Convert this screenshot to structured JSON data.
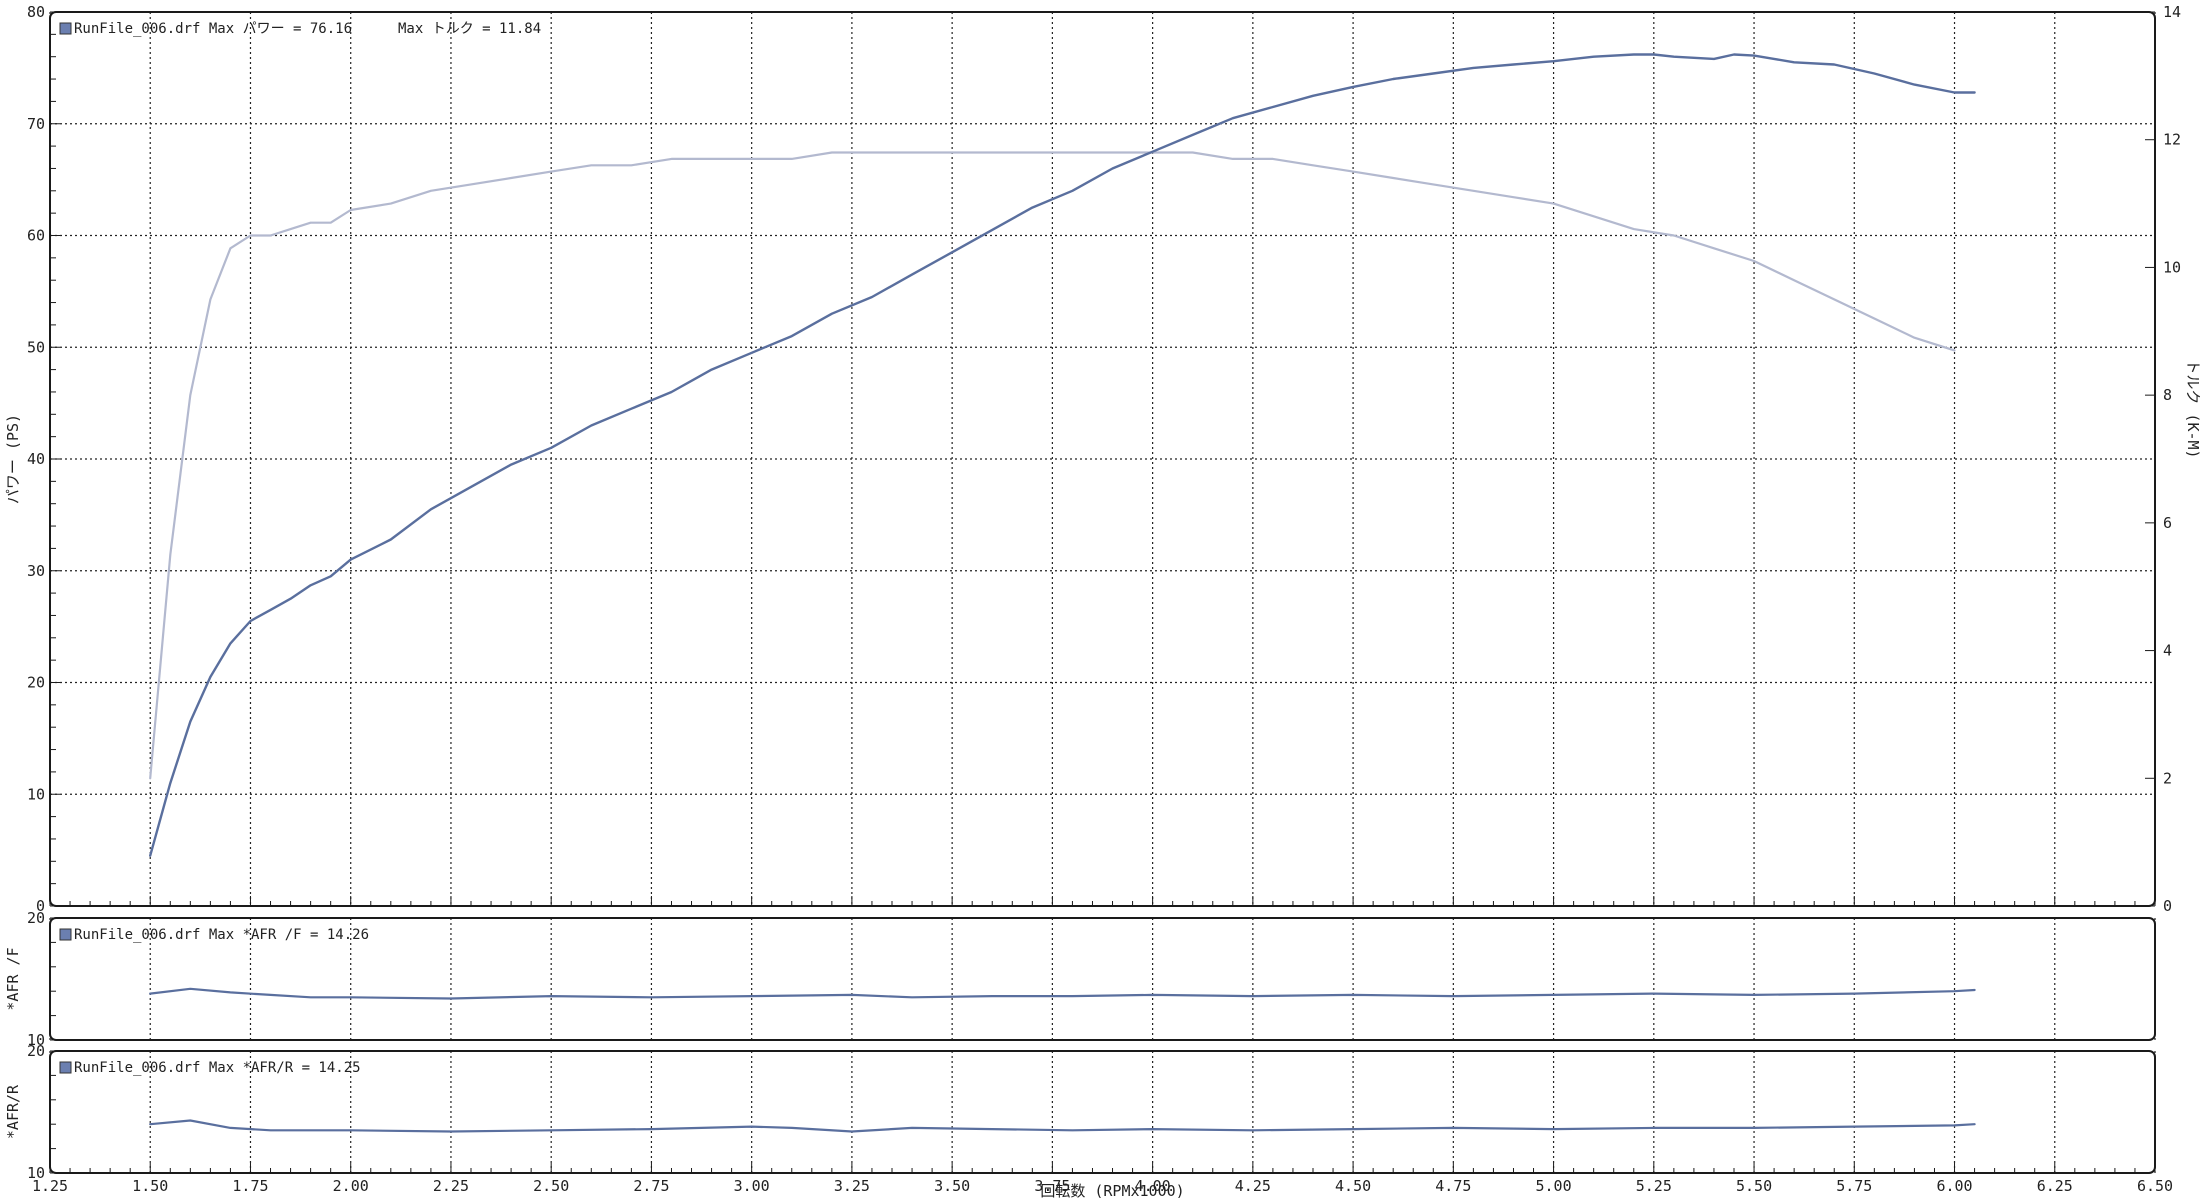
{
  "colors": {
    "power": "#5a6f9e",
    "torque": "#b3b9cf",
    "afr": "#5a6f9e",
    "grid": "#222222",
    "frame": "#1a1a1a",
    "legend_box": "#6b7fb0"
  },
  "chart_data": [
    {
      "type": "line",
      "panel": "main",
      "legend": [
        "RunFile_006.drf Max パワー = 76.16",
        "Max トルク = 11.84"
      ],
      "xlabel": "回転数 (RPMx1000)",
      "ylabel": "パワー (PS)",
      "y2label": "トルク (K-M)",
      "xlim": [
        1.25,
        6.5
      ],
      "ylim": [
        0,
        80
      ],
      "y2lim": [
        0,
        14
      ],
      "x_ticks": [
        "1.25",
        "1.50",
        "1.75",
        "2.00",
        "2.25",
        "2.50",
        "2.75",
        "3.00",
        "3.25",
        "3.50",
        "3.75",
        "4.00",
        "4.25",
        "4.50",
        "4.75",
        "5.00",
        "5.25",
        "5.50",
        "5.75",
        "6.00",
        "6.25",
        "6.50"
      ],
      "y_ticks": [
        "0",
        "10",
        "20",
        "30",
        "40",
        "50",
        "60",
        "70",
        "80"
      ],
      "y2_ticks": [
        "0",
        "2",
        "4",
        "6",
        "8",
        "10",
        "12",
        "14"
      ],
      "grid": true,
      "legend_position": "top-left",
      "series": [
        {
          "name": "パワー",
          "axis": "left",
          "color": "#5a6f9e",
          "x": [
            1.5,
            1.55,
            1.6,
            1.65,
            1.7,
            1.75,
            1.8,
            1.85,
            1.9,
            1.95,
            2.0,
            2.1,
            2.2,
            2.3,
            2.4,
            2.5,
            2.6,
            2.7,
            2.8,
            2.9,
            3.0,
            3.1,
            3.2,
            3.3,
            3.4,
            3.5,
            3.6,
            3.7,
            3.8,
            3.9,
            4.0,
            4.1,
            4.2,
            4.3,
            4.4,
            4.5,
            4.6,
            4.7,
            4.8,
            4.9,
            5.0,
            5.1,
            5.2,
            5.25,
            5.3,
            5.4,
            5.45,
            5.5,
            5.55,
            5.6,
            5.7,
            5.8,
            5.9,
            6.0,
            6.05
          ],
          "y": [
            4.5,
            11,
            16.5,
            20.5,
            23.5,
            25.5,
            26.5,
            27.5,
            28.7,
            29.5,
            31,
            32.8,
            35.5,
            37.5,
            39.5,
            41,
            43,
            44.5,
            46,
            48,
            49.5,
            51,
            53,
            54.5,
            56.5,
            58.5,
            60.5,
            62.5,
            64,
            66,
            67.5,
            69,
            70.5,
            71.5,
            72.5,
            73.3,
            74,
            74.5,
            75,
            75.3,
            75.6,
            76,
            76.2,
            76.2,
            76.0,
            75.8,
            76.2,
            76.1,
            75.8,
            75.5,
            75.3,
            74.5,
            73.5,
            72.8,
            72.8
          ]
        },
        {
          "name": "トルク",
          "axis": "right",
          "color": "#b3b9cf",
          "x": [
            1.5,
            1.55,
            1.6,
            1.65,
            1.7,
            1.75,
            1.8,
            1.85,
            1.9,
            1.95,
            2.0,
            2.1,
            2.2,
            2.3,
            2.4,
            2.5,
            2.6,
            2.7,
            2.8,
            2.9,
            3.0,
            3.1,
            3.2,
            3.3,
            3.4,
            3.5,
            3.6,
            3.7,
            3.8,
            3.9,
            4.0,
            4.1,
            4.2,
            4.3,
            4.4,
            4.5,
            4.6,
            4.7,
            4.8,
            4.9,
            5.0,
            5.1,
            5.2,
            5.3,
            5.4,
            5.5,
            5.6,
            5.7,
            5.8,
            5.9,
            6.0
          ],
          "y": [
            2.0,
            5.5,
            8.0,
            9.5,
            10.3,
            10.5,
            10.5,
            10.6,
            10.7,
            10.7,
            10.9,
            11.0,
            11.2,
            11.3,
            11.4,
            11.5,
            11.6,
            11.6,
            11.7,
            11.7,
            11.7,
            11.7,
            11.8,
            11.8,
            11.8,
            11.8,
            11.8,
            11.8,
            11.8,
            11.8,
            11.8,
            11.8,
            11.7,
            11.7,
            11.6,
            11.5,
            11.4,
            11.3,
            11.2,
            11.1,
            11.0,
            10.8,
            10.6,
            10.5,
            10.3,
            10.1,
            9.8,
            9.5,
            9.2,
            8.9,
            8.7
          ]
        }
      ]
    },
    {
      "type": "line",
      "panel": "afr_f",
      "legend": [
        "RunFile_006.drf Max *AFR /F = 14.26"
      ],
      "ylabel": "*AFR /F",
      "ylim": [
        10,
        20
      ],
      "y_ticks": [
        "10",
        "20"
      ],
      "grid": true,
      "series": [
        {
          "name": "*AFR /F",
          "color": "#5a6f9e",
          "x": [
            1.5,
            1.6,
            1.7,
            1.8,
            1.9,
            2.0,
            2.25,
            2.5,
            2.75,
            3.0,
            3.25,
            3.4,
            3.6,
            3.8,
            4.0,
            4.25,
            4.5,
            4.75,
            5.0,
            5.25,
            5.5,
            5.75,
            6.0,
            6.05
          ],
          "y": [
            13.8,
            14.2,
            13.9,
            13.7,
            13.5,
            13.5,
            13.4,
            13.6,
            13.5,
            13.6,
            13.7,
            13.5,
            13.6,
            13.6,
            13.7,
            13.6,
            13.7,
            13.6,
            13.7,
            13.8,
            13.7,
            13.8,
            14.0,
            14.1
          ]
        }
      ]
    },
    {
      "type": "line",
      "panel": "afr_r",
      "legend": [
        "RunFile_006.drf Max *AFR/R = 14.25"
      ],
      "xlabel": "回転数 (RPMx1000)",
      "ylabel": "*AFR/R",
      "xlim": [
        1.25,
        6.5
      ],
      "ylim": [
        10,
        20
      ],
      "y_ticks": [
        "10",
        "20"
      ],
      "x_ticks": [
        "1.25",
        "1.50",
        "1.75",
        "2.00",
        "2.25",
        "2.50",
        "2.75",
        "3.00",
        "3.25",
        "3.50",
        "3.75",
        "4.00",
        "4.25",
        "4.50",
        "4.75",
        "5.00",
        "5.25",
        "5.50",
        "5.75",
        "6.00",
        "6.25",
        "6.50"
      ],
      "grid": true,
      "series": [
        {
          "name": "*AFR/R",
          "color": "#5a6f9e",
          "x": [
            1.5,
            1.6,
            1.7,
            1.8,
            2.0,
            2.25,
            2.5,
            2.75,
            3.0,
            3.1,
            3.25,
            3.4,
            3.6,
            3.8,
            4.0,
            4.25,
            4.5,
            4.75,
            5.0,
            5.25,
            5.5,
            5.75,
            6.0,
            6.05
          ],
          "y": [
            14.0,
            14.3,
            13.7,
            13.5,
            13.5,
            13.4,
            13.5,
            13.6,
            13.8,
            13.7,
            13.4,
            13.7,
            13.6,
            13.5,
            13.6,
            13.5,
            13.6,
            13.7,
            13.6,
            13.7,
            13.7,
            13.8,
            13.9,
            14.0
          ]
        }
      ]
    }
  ]
}
